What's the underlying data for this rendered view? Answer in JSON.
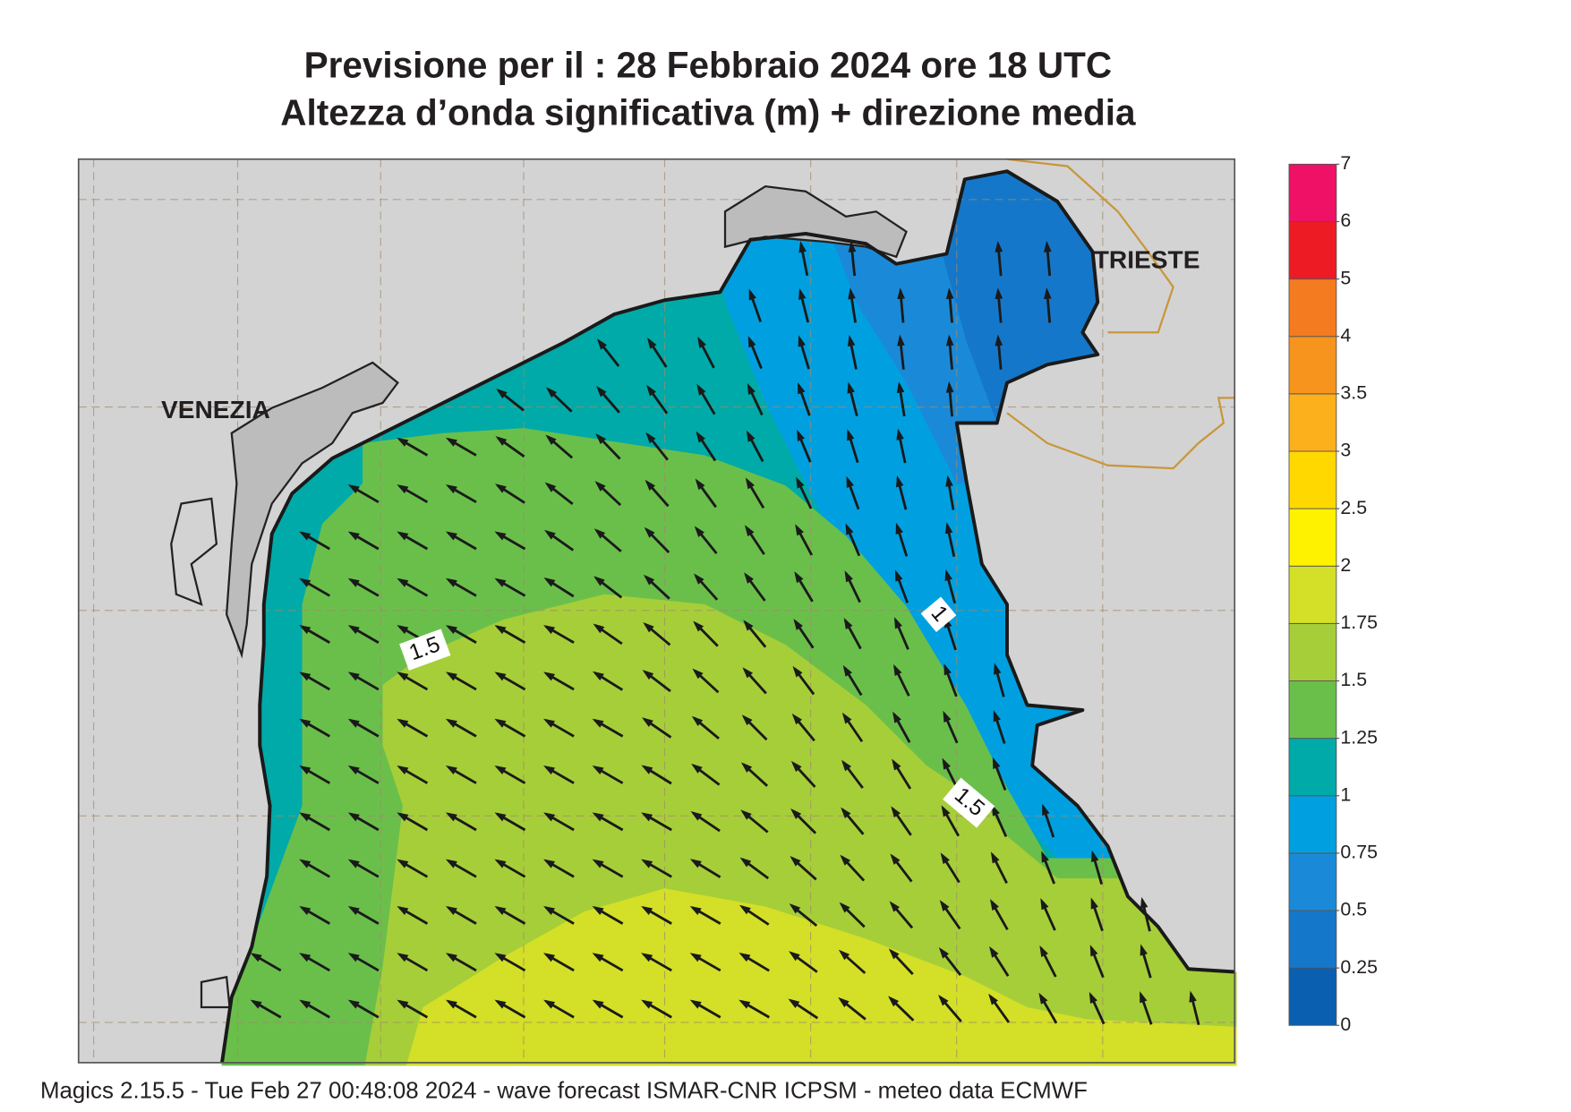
{
  "header": {
    "title_line1": "Previsione per il  :  28  Febbraio 2024   ore 18 UTC",
    "title_line2": "Altezza d’onda significativa (m) + direzione media"
  },
  "map": {
    "place_labels": [
      "VENEZIA",
      "TRIESTE"
    ],
    "contour_labels": [
      "1.5",
      "1",
      "1.5"
    ]
  },
  "legend": {
    "ticks": [
      0,
      0.25,
      0.5,
      0.75,
      1,
      1.25,
      1.5,
      1.75,
      2,
      2.5,
      3,
      3.5,
      4,
      5,
      6,
      7
    ],
    "colors": [
      "#0a5fb0",
      "#1577c9",
      "#1a8ad8",
      "#00a0e0",
      "#00aaa8",
      "#6abf4b",
      "#a6ce39",
      "#d4df27",
      "#fff200",
      "#ffd800",
      "#fbb01c",
      "#f7941d",
      "#f47b20",
      "#ed1c24",
      "#ee1166"
    ]
  },
  "footer": "Magics 2.15.5 - Tue Feb 27 00:48:08 2024 - wave forecast  ISMAR-CNR  ICPSM - meteo data    ECMWF"
}
